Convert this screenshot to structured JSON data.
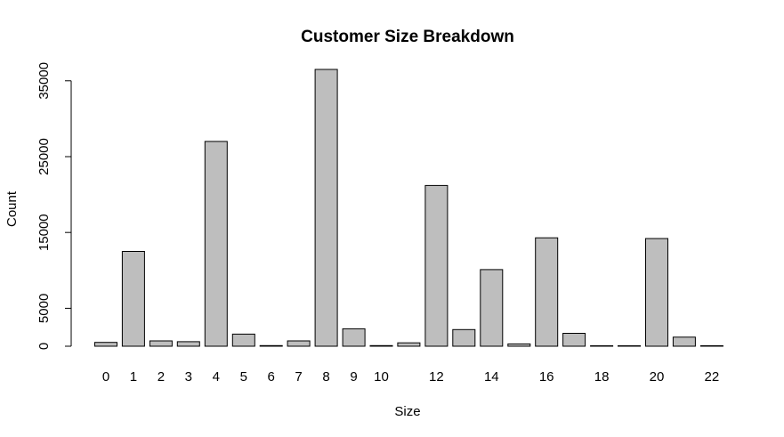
{
  "chart_data": {
    "type": "bar",
    "title": "Customer Size Breakdown",
    "xlabel": "Size",
    "ylabel": "Count",
    "categories": [
      "0",
      "1",
      "2",
      "3",
      "4",
      "5",
      "6",
      "7",
      "8",
      "9",
      "10",
      "11",
      "12",
      "13",
      "14",
      "15",
      "16",
      "17",
      "18",
      "19",
      "20",
      "21",
      "22"
    ],
    "x_tick_labels_shown": [
      "0",
      "1",
      "2",
      "3",
      "4",
      "5",
      "6",
      "7",
      "8",
      "9",
      "10",
      "12",
      "14",
      "16",
      "18",
      "20",
      "22"
    ],
    "values": [
      500,
      12500,
      700,
      600,
      27000,
      1600,
      80,
      700,
      36500,
      2300,
      80,
      450,
      21200,
      2200,
      10100,
      300,
      14300,
      1700,
      60,
      60,
      14200,
      1200,
      70
    ],
    "y_ticks": [
      0,
      5000,
      15000,
      25000,
      35000
    ],
    "ylim": [
      0,
      36500
    ],
    "bar_color": "#bebebe",
    "border_color": "#000000",
    "grid": false
  }
}
